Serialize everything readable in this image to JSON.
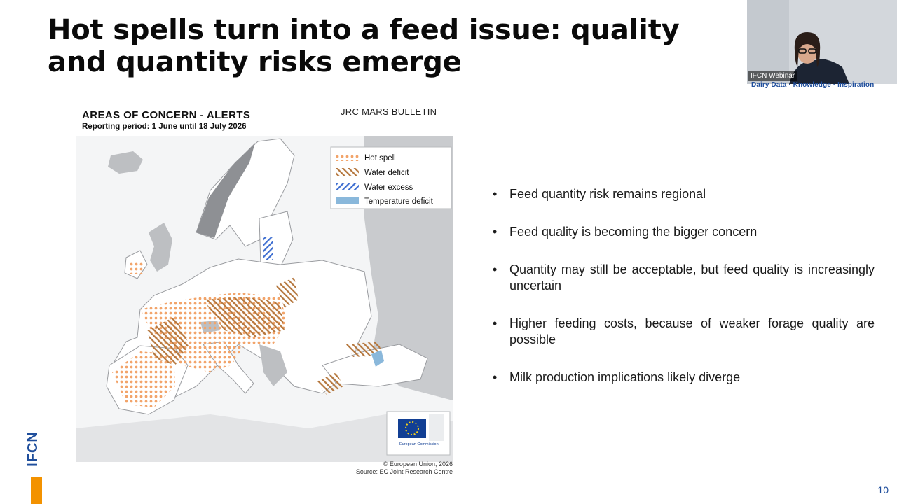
{
  "slide": {
    "title": "Hot spells turn into a feed issue: quality and quantity risks emerge",
    "page_number": "10",
    "logo_text": "IFCN",
    "tagline": "Dairy Data · Knowledge · Inspiration"
  },
  "webcam": {
    "label": "IFCN Webinar"
  },
  "map": {
    "title": "AREAS OF CONCERN - ALERTS",
    "period": "Reporting period: 1 June until 18 July 2026",
    "bulletin": "JRC MARS BULLETIN",
    "legend": [
      {
        "label": "Hot spell",
        "pattern": "dots",
        "color": "#f2a46a"
      },
      {
        "label": "Water deficit",
        "pattern": "hatch-back",
        "color": "#b5773d"
      },
      {
        "label": "Water excess",
        "pattern": "hatch-fwd",
        "color": "#3f6fd1"
      },
      {
        "label": "Temperature deficit",
        "pattern": "solid",
        "color": "#8ab8db"
      }
    ],
    "copyright": "© European Union, 2026",
    "source": "Source: EC Joint Research Centre",
    "ec_logo_text": "European Commission"
  },
  "bullets": [
    "Feed quantity risk remains regional",
    "Feed quality is becoming the bigger concern",
    "Quantity may still be acceptable, but feed quality is increasingly uncertain",
    "Higher feeding costs, because of weaker forage quality are possible",
    "Milk production implications likely diverge"
  ],
  "colors": {
    "brand_blue": "#1f4e9c",
    "brand_orange": "#f39200"
  }
}
